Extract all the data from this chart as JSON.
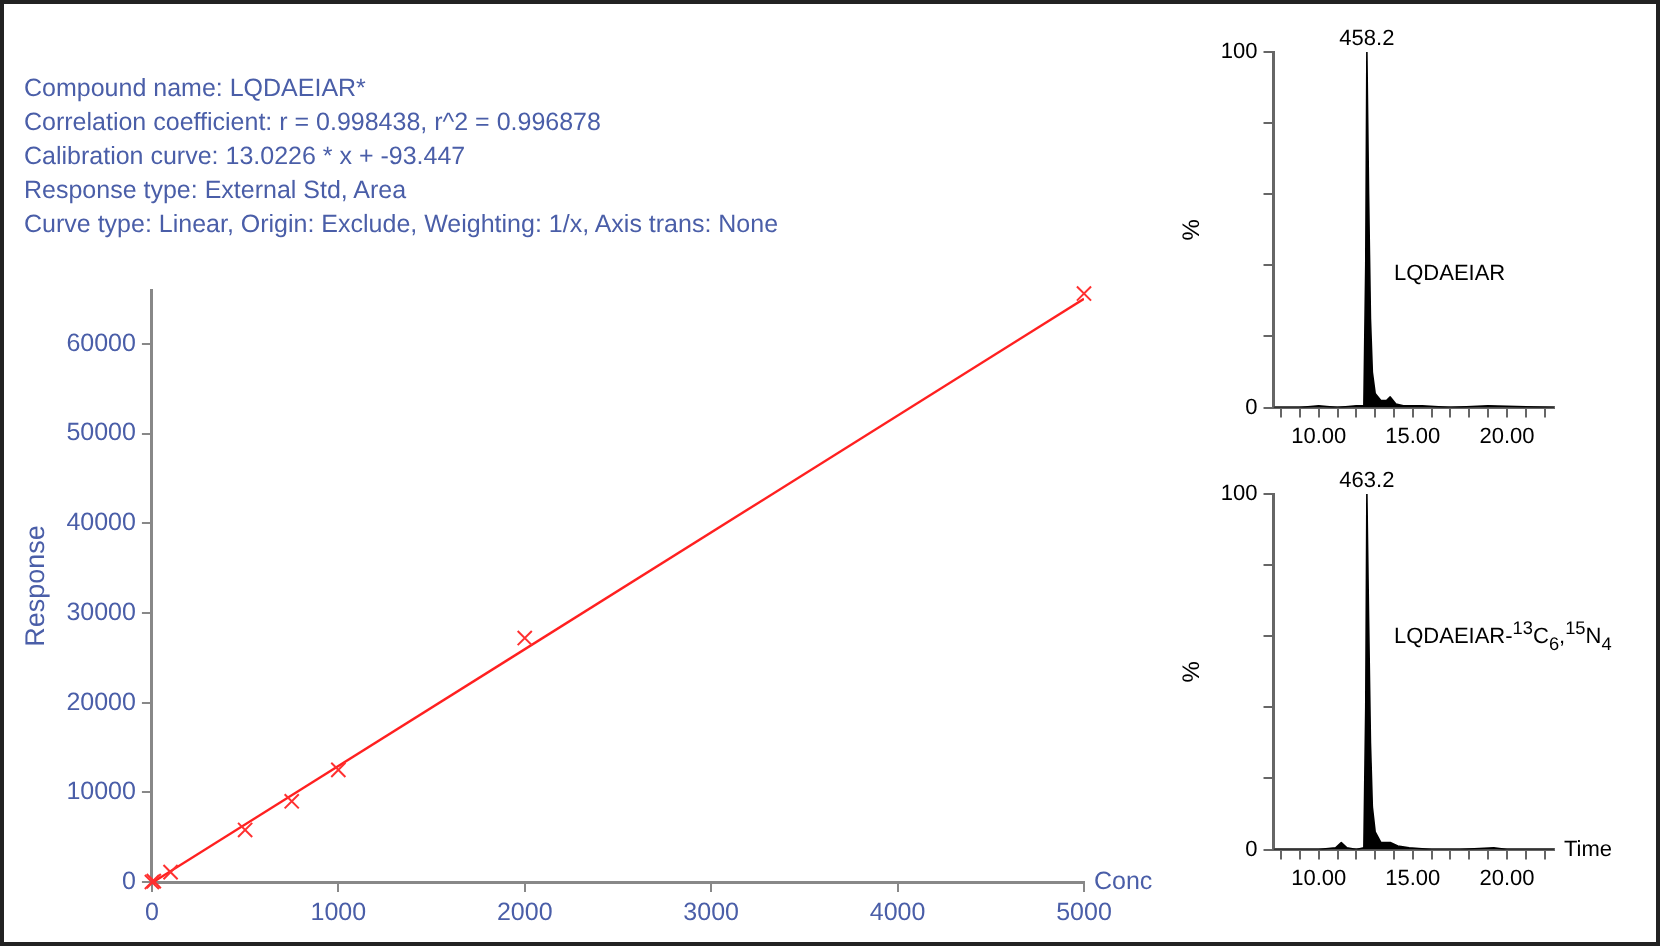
{
  "chart_data": [
    {
      "type": "scatter",
      "annotations": [
        "Compound name: LQDAEIAR*",
        "Correlation coefficient: r = 0.998438, r^2 = 0.996878",
        "Calibration curve: 13.0226 * x + -93.447",
        "Response type: External Std, Area",
        "Curve type: Linear, Origin: Exclude, Weighting: 1/x, Axis trans: None"
      ],
      "xlabel": "Conc",
      "ylabel": "Response",
      "xlim": [
        0,
        5000
      ],
      "xticks": [
        0,
        1000,
        2000,
        3000,
        4000,
        5000
      ],
      "ylim": [
        0,
        66000
      ],
      "yticks": [
        0,
        10000,
        20000,
        30000,
        40000,
        50000,
        60000
      ],
      "series": [
        {
          "marker": "cross",
          "color": "#ff3030",
          "x": [
            0,
            10,
            100,
            500,
            750,
            1000,
            2000,
            5000
          ],
          "values": [
            0,
            100,
            1100,
            5800,
            9000,
            12500,
            27200,
            65600
          ]
        },
        {
          "type": "line",
          "marker": "none",
          "color": "#ff2020",
          "x": [
            10,
            5000
          ],
          "values": [
            37,
            65020
          ]
        }
      ]
    },
    {
      "type": "area",
      "annotations": [
        {
          "text": "458.2",
          "x": 12.56,
          "y": 100
        },
        "LQDAEIAR"
      ],
      "ylabel": "%",
      "xlim": [
        7.6,
        22.5
      ],
      "xticks": [
        {
          "value": 8,
          "label": null
        },
        {
          "value": 9,
          "label": null
        },
        {
          "value": 10,
          "label": "10.00"
        },
        {
          "value": 11,
          "label": null
        },
        {
          "value": 12,
          "label": null
        },
        {
          "value": 13,
          "label": null
        },
        {
          "value": 14,
          "label": null
        },
        {
          "value": 15,
          "label": "15.00"
        },
        {
          "value": 16,
          "label": null
        },
        {
          "value": 17,
          "label": null
        },
        {
          "value": 18,
          "label": null
        },
        {
          "value": 19,
          "label": null
        },
        {
          "value": 20,
          "label": "20.00"
        },
        {
          "value": 21,
          "label": null
        },
        {
          "value": 22,
          "label": null
        }
      ],
      "ylim": [
        0,
        100
      ],
      "yticks": [
        0,
        {
          "value": 20,
          "label": null
        },
        {
          "value": 40,
          "label": null
        },
        {
          "value": 60,
          "label": null
        },
        {
          "value": 80,
          "label": null
        },
        100
      ],
      "series": [
        {
          "color": "#000000",
          "x": [
            7.6,
            9,
            10,
            11,
            12,
            12.4,
            12.5,
            12.56,
            12.65,
            12.75,
            12.85,
            13,
            13.3,
            13.6,
            13.8,
            14.1,
            14.5,
            15.5,
            17,
            19,
            22.5
          ],
          "values": [
            0,
            0,
            0.5,
            0,
            0.5,
            0.5,
            40,
            100,
            60,
            25,
            10,
            4,
            2,
            2,
            3,
            1,
            0.5,
            0.5,
            0,
            0.5,
            0
          ]
        }
      ]
    },
    {
      "type": "area",
      "annotations": [
        {
          "text": "463.2",
          "x": 12.56,
          "y": 100
        },
        "LQDAEIAR-$^{13}$C$_{6}$,$^{15}$N$_{4}$"
      ],
      "xlabel": "Time",
      "ylabel": "%",
      "xlim": [
        7.6,
        22.5
      ],
      "xticks": [
        {
          "value": 8,
          "label": null
        },
        {
          "value": 9,
          "label": null
        },
        {
          "value": 10,
          "label": "10.00"
        },
        {
          "value": 11,
          "label": null
        },
        {
          "value": 12,
          "label": null
        },
        {
          "value": 13,
          "label": null
        },
        {
          "value": 14,
          "label": null
        },
        {
          "value": 15,
          "label": "15.00"
        },
        {
          "value": 16,
          "label": null
        },
        {
          "value": 17,
          "label": null
        },
        {
          "value": 18,
          "label": null
        },
        {
          "value": 19,
          "label": null
        },
        {
          "value": 20,
          "label": "20.00"
        },
        {
          "value": 21,
          "label": null
        },
        {
          "value": 22,
          "label": null
        }
      ],
      "ylim": [
        0,
        100
      ],
      "yticks": [
        0,
        {
          "value": 20,
          "label": null
        },
        {
          "value": 40,
          "label": null
        },
        {
          "value": 60,
          "label": null
        },
        {
          "value": 80,
          "label": null
        },
        100
      ],
      "series": [
        {
          "color": "#000000",
          "x": [
            7.6,
            9,
            10,
            10.9,
            11.2,
            11.5,
            12,
            12.4,
            12.5,
            12.56,
            12.65,
            12.75,
            12.85,
            13,
            13.3,
            13.8,
            14.2,
            14.8,
            16,
            17.5,
            19.3,
            20,
            22.5
          ],
          "values": [
            0,
            0,
            0,
            0.5,
            2,
            0.5,
            0,
            0.5,
            40,
            100,
            65,
            30,
            12,
            5,
            2,
            2,
            1,
            0.5,
            0,
            0,
            0.5,
            0,
            0
          ]
        }
      ]
    }
  ]
}
